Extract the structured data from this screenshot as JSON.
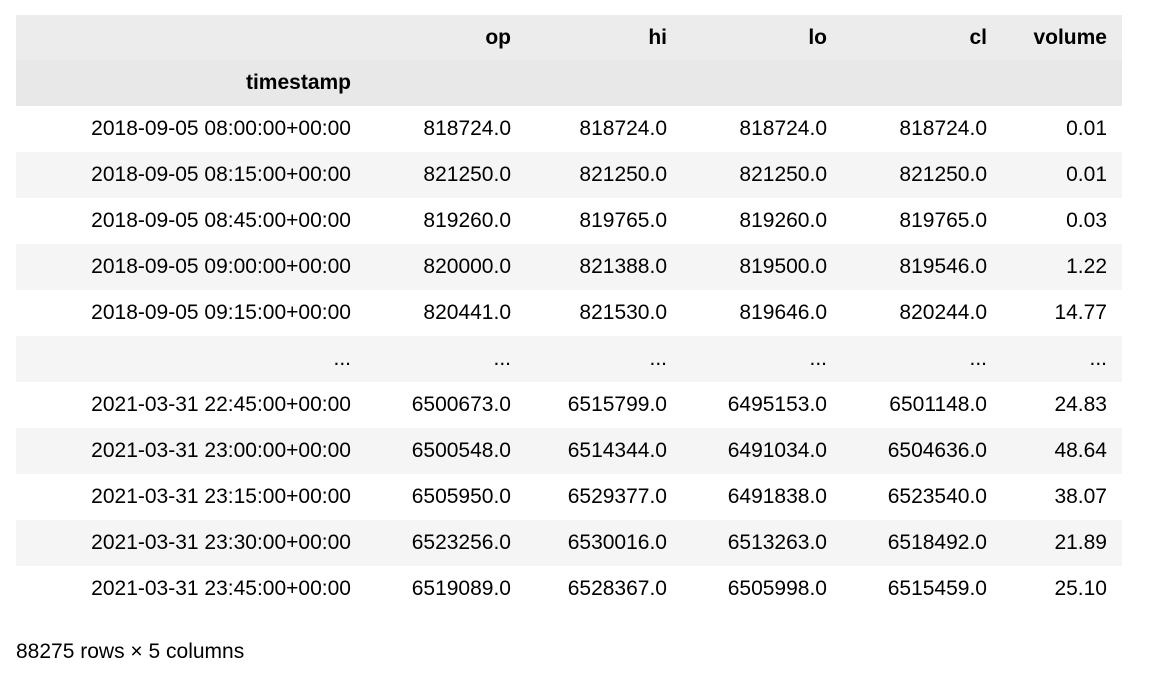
{
  "table": {
    "columns": [
      "op",
      "hi",
      "lo",
      "cl",
      "volume"
    ],
    "index_name": "timestamp",
    "rows": [
      [
        "2018-09-05 08:00:00+00:00",
        "818724.0",
        "818724.0",
        "818724.0",
        "818724.0",
        "0.01"
      ],
      [
        "2018-09-05 08:15:00+00:00",
        "821250.0",
        "821250.0",
        "821250.0",
        "821250.0",
        "0.01"
      ],
      [
        "2018-09-05 08:45:00+00:00",
        "819260.0",
        "819765.0",
        "819260.0",
        "819765.0",
        "0.03"
      ],
      [
        "2018-09-05 09:00:00+00:00",
        "820000.0",
        "821388.0",
        "819500.0",
        "819546.0",
        "1.22"
      ],
      [
        "2018-09-05 09:15:00+00:00",
        "820441.0",
        "821530.0",
        "819646.0",
        "820244.0",
        "14.77"
      ],
      [
        "...",
        "...",
        "...",
        "...",
        "...",
        "..."
      ],
      [
        "2021-03-31 22:45:00+00:00",
        "6500673.0",
        "6515799.0",
        "6495153.0",
        "6501148.0",
        "24.83"
      ],
      [
        "2021-03-31 23:00:00+00:00",
        "6500548.0",
        "6514344.0",
        "6491034.0",
        "6504636.0",
        "48.64"
      ],
      [
        "2021-03-31 23:15:00+00:00",
        "6505950.0",
        "6529377.0",
        "6491838.0",
        "6523540.0",
        "38.07"
      ],
      [
        "2021-03-31 23:30:00+00:00",
        "6523256.0",
        "6530016.0",
        "6513263.0",
        "6518492.0",
        "21.89"
      ],
      [
        "2021-03-31 23:45:00+00:00",
        "6519089.0",
        "6528367.0",
        "6505998.0",
        "6515459.0",
        "25.10"
      ]
    ]
  },
  "footer": "88275 rows × 5 columns"
}
